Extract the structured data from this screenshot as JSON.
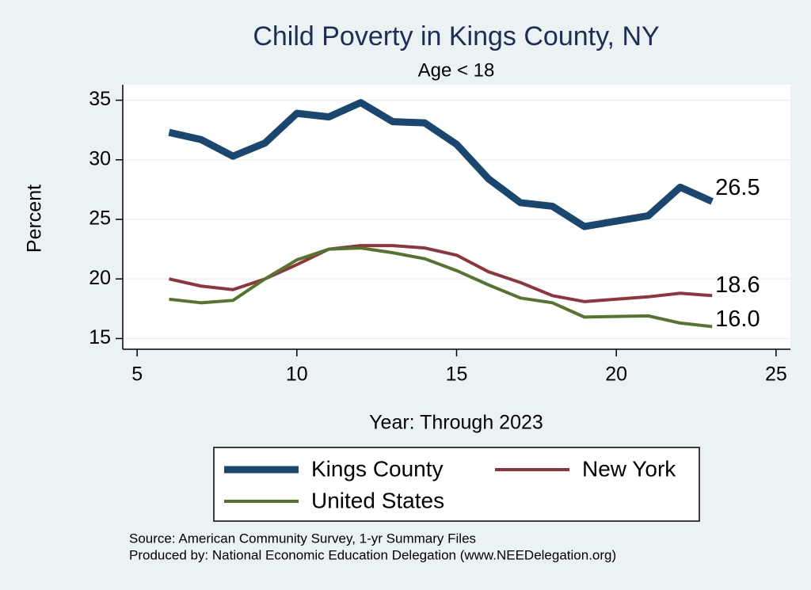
{
  "chart_data": {
    "type": "line",
    "title": "Child Poverty in Kings County, NY",
    "subtitle": "Age < 18",
    "x_label": "Year: Through 2023",
    "y_label": "Percent",
    "x": [
      6,
      7,
      8,
      9,
      10,
      11,
      12,
      13,
      14,
      15,
      16,
      17,
      18,
      19,
      21,
      22,
      23
    ],
    "series": [
      {
        "name": "Kings County",
        "color": "#1a476f",
        "width": 9,
        "values": [
          32.3,
          31.7,
          30.3,
          31.4,
          33.9,
          33.6,
          34.8,
          33.2,
          33.1,
          31.3,
          28.4,
          26.4,
          26.1,
          24.4,
          25.3,
          27.7,
          26.5
        ],
        "value_labels": [
          null,
          null,
          null,
          null,
          null,
          null,
          null,
          null,
          null,
          null,
          null,
          null,
          null,
          null,
          null,
          null,
          "26.5"
        ]
      },
      {
        "name": "New York",
        "color": "#90353b",
        "width": 4,
        "values": [
          20.0,
          19.4,
          19.1,
          20.0,
          21.2,
          22.5,
          22.8,
          22.8,
          22.6,
          22.0,
          20.6,
          19.7,
          18.6,
          18.1,
          18.5,
          18.8,
          18.6
        ],
        "value_labels": [
          null,
          null,
          null,
          null,
          null,
          null,
          null,
          null,
          null,
          null,
          null,
          null,
          null,
          null,
          null,
          null,
          "18.6"
        ]
      },
      {
        "name": "United States",
        "color": "#55752f",
        "width": 4,
        "values": [
          18.3,
          18.0,
          18.2,
          20.0,
          21.6,
          22.5,
          22.6,
          22.2,
          21.7,
          20.7,
          19.5,
          18.4,
          18.0,
          16.8,
          16.9,
          16.3,
          16.0
        ],
        "value_labels": [
          null,
          null,
          null,
          null,
          null,
          null,
          null,
          null,
          null,
          null,
          null,
          null,
          null,
          null,
          null,
          null,
          "16.0"
        ]
      }
    ],
    "xlim": [
      4.55,
      25.45
    ],
    "ylim": [
      14.1,
      36.3
    ],
    "xticks": [
      5,
      10,
      15,
      20,
      25
    ],
    "yticks": [
      15,
      20,
      25,
      30,
      35
    ],
    "grid": true,
    "notes": [
      "Source: American Community Survey, 1-yr Summary Files",
      "Produced by: National Economic Education Delegation (www.NEEDelegation.org)"
    ]
  }
}
